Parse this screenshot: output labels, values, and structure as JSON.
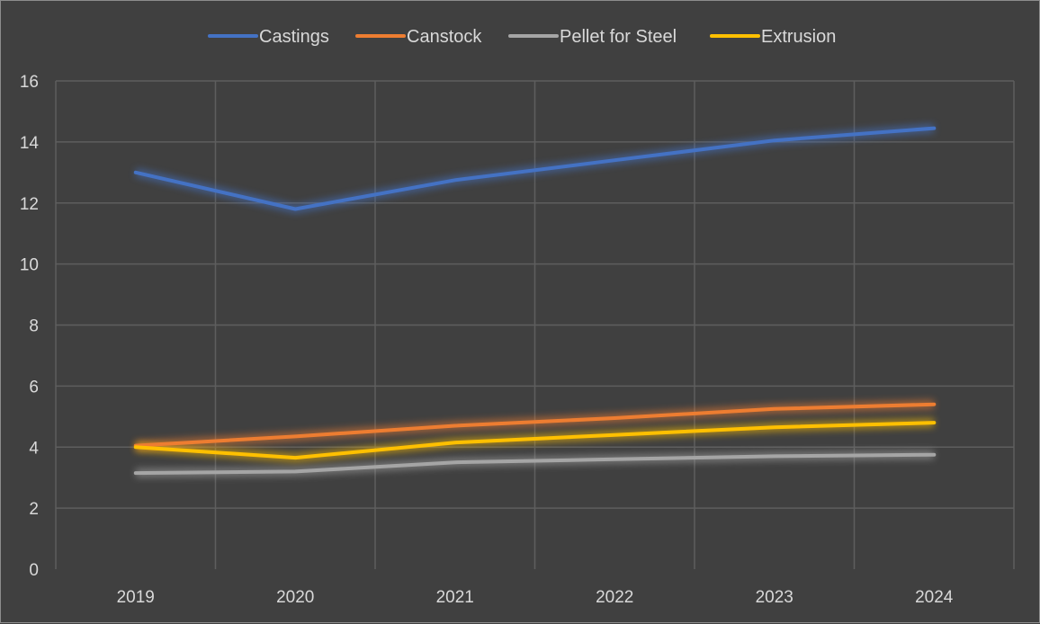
{
  "chart_data": {
    "type": "line",
    "title": "",
    "xlabel": "",
    "ylabel": "",
    "categories": [
      "2019",
      "2020",
      "2021",
      "2022",
      "2023",
      "2024"
    ],
    "ylim": [
      0,
      16
    ],
    "yticks": [
      0,
      2,
      4,
      6,
      8,
      10,
      12,
      14,
      16
    ],
    "grid": true,
    "legend_position": "top",
    "series": [
      {
        "name": "Castings",
        "color": "#4472c4",
        "values": [
          13.0,
          11.8,
          12.75,
          13.4,
          14.05,
          14.45
        ]
      },
      {
        "name": "Canstock",
        "color": "#ed7d31",
        "values": [
          4.05,
          4.35,
          4.7,
          4.95,
          5.25,
          5.4
        ]
      },
      {
        "name": "Pellet for Steel",
        "color": "#a5a5a5",
        "values": [
          3.15,
          3.2,
          3.5,
          3.6,
          3.7,
          3.75
        ]
      },
      {
        "name": "Extrusion",
        "color": "#ffc000",
        "values": [
          4.0,
          3.65,
          4.15,
          4.4,
          4.65,
          4.8
        ]
      }
    ]
  }
}
